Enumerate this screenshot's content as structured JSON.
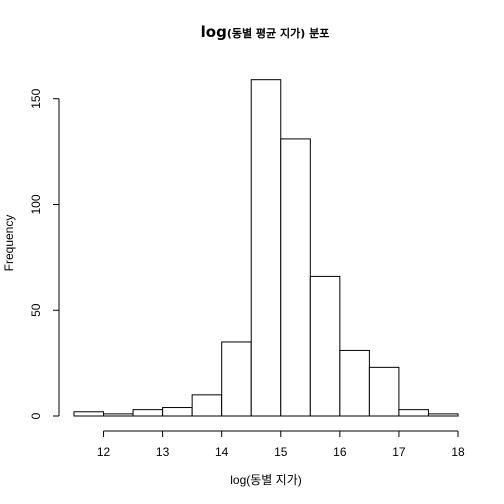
{
  "chart_data": {
    "type": "bar",
    "title_main": "log",
    "title_rest": "(동별 평균 지가) 분포",
    "xlabel": "log(동별 지가)",
    "ylabel": "Frequency",
    "bin_edges": [
      11.5,
      12,
      12.5,
      13,
      13.5,
      14,
      14.5,
      15,
      15.5,
      16,
      16.5,
      17,
      17.5,
      18
    ],
    "values": [
      2,
      1,
      3,
      4,
      10,
      35,
      159,
      131,
      66,
      31,
      23,
      3,
      1
    ],
    "xlim": [
      11.5,
      18
    ],
    "ylim": [
      0,
      165
    ],
    "x_ticks": [
      "12",
      "13",
      "14",
      "15",
      "16",
      "17",
      "18"
    ],
    "y_ticks": [
      "0",
      "50",
      "100",
      "150"
    ],
    "grid": false,
    "bar_fill": "#ffffff",
    "bar_stroke": "#000000"
  }
}
